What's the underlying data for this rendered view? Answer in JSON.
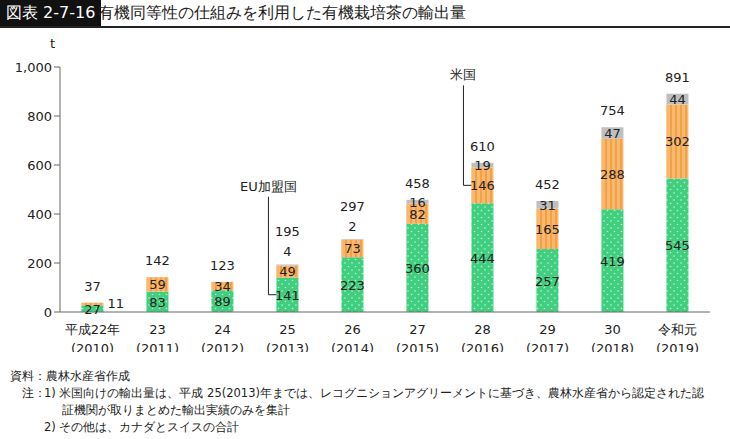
{
  "chart_data": {
    "type": "bar",
    "figure_number": "図表 2-7-16",
    "title": "有機同等性の仕組みを利用した有機栽培茶の輸出量",
    "y_label": "t",
    "categories": [
      "平成22年\n(2010)",
      "23\n(2011)",
      "24\n(2012)",
      "25\n(2013)",
      "26\n(2014)",
      "27\n(2015)",
      "28\n(2016)",
      "29\n(2017)",
      "30\n(2018)",
      "令和元\n(2019)"
    ],
    "series": [
      {
        "name": "EU加盟国",
        "color": "#3fcf7e",
        "values": [
          27,
          83,
          89,
          141,
          223,
          360,
          444,
          257,
          419,
          545
        ]
      },
      {
        "name": "米国",
        "color": "#f8b86e",
        "values": [
          11,
          59,
          34,
          49,
          73,
          82,
          146,
          165,
          288,
          302
        ]
      },
      {
        "name": "その他",
        "color": "#bfbfbf",
        "values": [
          null,
          null,
          null,
          4,
          2,
          16,
          19,
          31,
          47,
          44
        ]
      }
    ],
    "totals": [
      37,
      142,
      123,
      195,
      297,
      458,
      610,
      452,
      754,
      891
    ],
    "stacked": true,
    "data_labels": true,
    "grid": false,
    "ylim": [
      0,
      1000
    ],
    "yticks": [
      0,
      200,
      400,
      600,
      800,
      {
        "value": 1000,
        "label": "1,000"
      }
    ],
    "source": "資料：農林水産省作成",
    "notes_label": "注：",
    "notes": [
      "1) 米国向けの輸出量は、平成 25(2013)年までは、レコグニションアグリーメントに基づき、農林水産省から認定された認証機関が取りまとめた輸出実績のみを集計",
      "2) その他は、カナダとスイスの合計"
    ]
  }
}
